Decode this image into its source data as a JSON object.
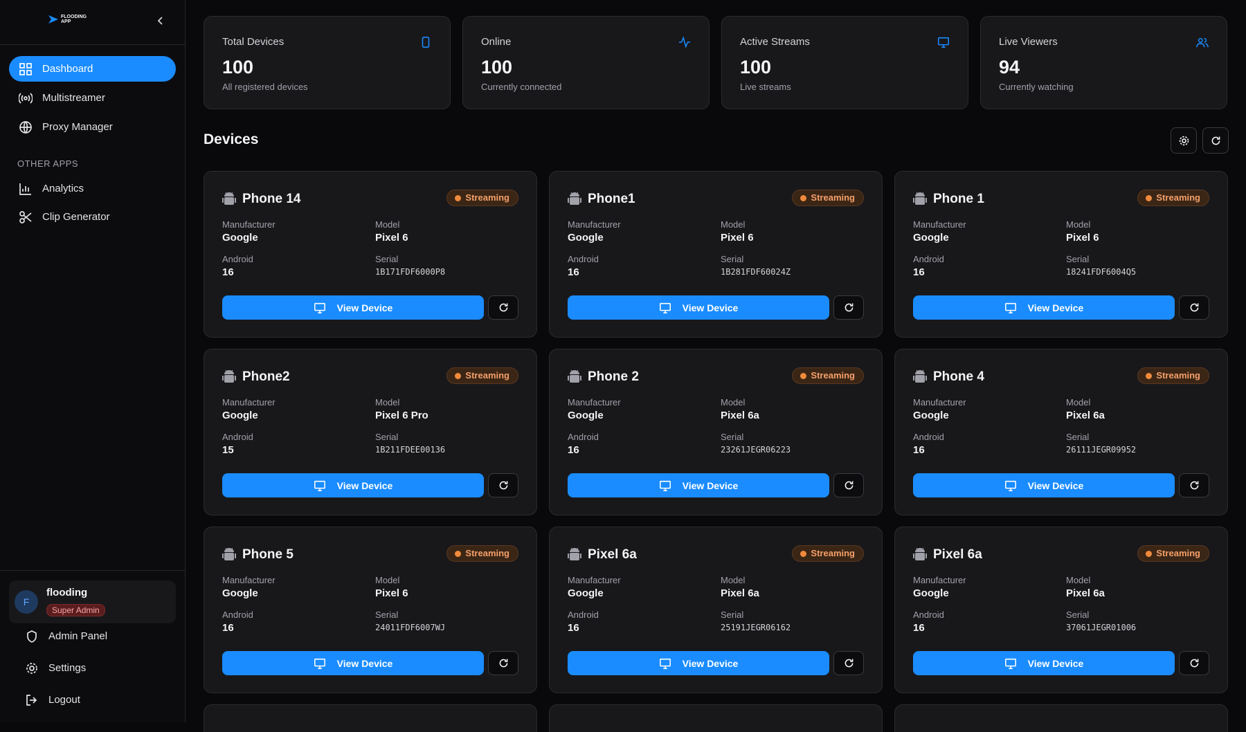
{
  "sidebar": {
    "logo": "FLOODING APP",
    "nav": [
      "Dashboard",
      "Multistreamer",
      "Proxy Manager"
    ],
    "section_title": "OTHER APPS",
    "other_apps": [
      "Analytics",
      "Clip Generator"
    ],
    "user": {
      "initial": "F",
      "name": "flooding",
      "role": "Super Admin"
    },
    "bottom": [
      "Admin Panel",
      "Settings",
      "Logout"
    ]
  },
  "stats": [
    {
      "label": "Total Devices",
      "value": "100",
      "sub": "All registered devices"
    },
    {
      "label": "Online",
      "value": "100",
      "sub": "Currently connected"
    },
    {
      "label": "Active Streams",
      "value": "100",
      "sub": "Live streams"
    },
    {
      "label": "Live Viewers",
      "value": "94",
      "sub": "Currently watching"
    }
  ],
  "devices_title": "Devices",
  "field_labels": {
    "manufacturer": "Manufacturer",
    "model": "Model",
    "android": "Android",
    "serial": "Serial"
  },
  "status": "Streaming",
  "button": "View Device",
  "devices": [
    {
      "name": "Phone 14",
      "manufacturer": "Google",
      "model": "Pixel 6",
      "android": "16",
      "serial": "1B171FDF6000P8"
    },
    {
      "name": "Phone1",
      "manufacturer": "Google",
      "model": "Pixel 6",
      "android": "16",
      "serial": "1B281FDF60024Z"
    },
    {
      "name": "Phone 1",
      "manufacturer": "Google",
      "model": "Pixel 6",
      "android": "16",
      "serial": "18241FDF6004Q5"
    },
    {
      "name": "Phone2",
      "manufacturer": "Google",
      "model": "Pixel 6 Pro",
      "android": "15",
      "serial": "1B211FDEE00136"
    },
    {
      "name": "Phone 2",
      "manufacturer": "Google",
      "model": "Pixel 6a",
      "android": "16",
      "serial": "23261JEGR06223"
    },
    {
      "name": "Phone 4",
      "manufacturer": "Google",
      "model": "Pixel 6a",
      "android": "16",
      "serial": "26111JEGR09952"
    },
    {
      "name": "Phone 5",
      "manufacturer": "Google",
      "model": "Pixel 6",
      "android": "16",
      "serial": "24011FDF6007WJ"
    },
    {
      "name": "Pixel 6a",
      "manufacturer": "Google",
      "model": "Pixel 6a",
      "android": "16",
      "serial": "25191JEGR06162"
    },
    {
      "name": "Pixel 6a",
      "manufacturer": "Google",
      "model": "Pixel 6a",
      "android": "16",
      "serial": "37061JEGR01006"
    }
  ]
}
